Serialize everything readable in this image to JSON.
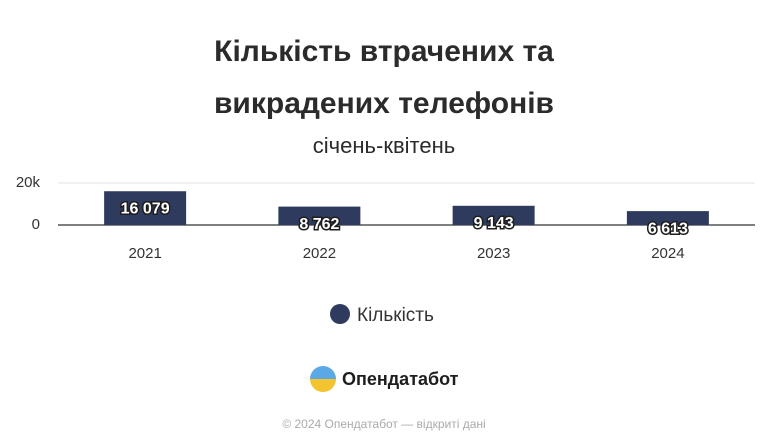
{
  "chart_data": {
    "type": "bar",
    "title": "Кількість втрачених та викрадених телефонів",
    "subtitle": "січень-квітень",
    "categories": [
      "2021",
      "2022",
      "2023",
      "2024"
    ],
    "series": [
      {
        "name": "Кількість",
        "color": "#2e3b5e",
        "values": [
          16079,
          8762,
          9143,
          6613
        ],
        "value_labels": [
          "16 079",
          "8 762",
          "9 143",
          "6 613"
        ]
      }
    ],
    "ylim": [
      0,
      20000
    ],
    "yticks": [
      0,
      {
        "value": 20000,
        "label": "20k"
      }
    ],
    "grid": true,
    "legend": "bottom"
  },
  "logo_text": "Опендатабот",
  "footer": "© 2024 Опендатабот — відкриті дані"
}
